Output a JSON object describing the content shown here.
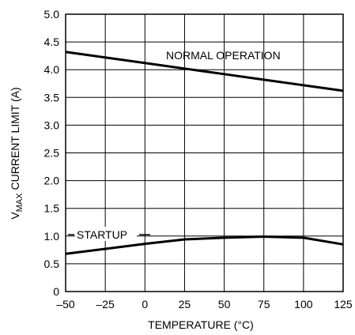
{
  "chart_data": {
    "type": "line",
    "title": "",
    "xlabel": "TEMPERATURE (°C)",
    "ylabel_main": "V",
    "ylabel_sub": "MAX",
    "ylabel_rest": " CURRENT LIMIT (A)",
    "xlim": [
      -50,
      125
    ],
    "ylim": [
      0,
      5.0
    ],
    "x_ticks": [
      "–50",
      "–25",
      "0",
      "25",
      "50",
      "75",
      "100",
      "125"
    ],
    "x_tick_values": [
      -50,
      -25,
      0,
      25,
      50,
      75,
      100,
      125
    ],
    "y_ticks": [
      "0",
      "0.5",
      "1.0",
      "1.5",
      "2.0",
      "2.5",
      "3.0",
      "3.5",
      "4.0",
      "4.5",
      "5.0"
    ],
    "y_tick_values": [
      0,
      0.5,
      1.0,
      1.5,
      2.0,
      2.5,
      3.0,
      3.5,
      4.0,
      4.5,
      5.0
    ],
    "grid": true,
    "series": [
      {
        "name": "NORMAL OPERATION",
        "x": [
          -50,
          -25,
          0,
          25,
          50,
          75,
          100,
          125
        ],
        "values": [
          4.32,
          4.22,
          4.12,
          4.02,
          3.92,
          3.82,
          3.72,
          3.62
        ]
      },
      {
        "name": "STARTUP",
        "x": [
          -50,
          -25,
          0,
          25,
          50,
          75,
          100,
          125
        ],
        "values": [
          0.68,
          0.77,
          0.86,
          0.94,
          0.97,
          0.99,
          0.97,
          0.85
        ]
      }
    ]
  }
}
